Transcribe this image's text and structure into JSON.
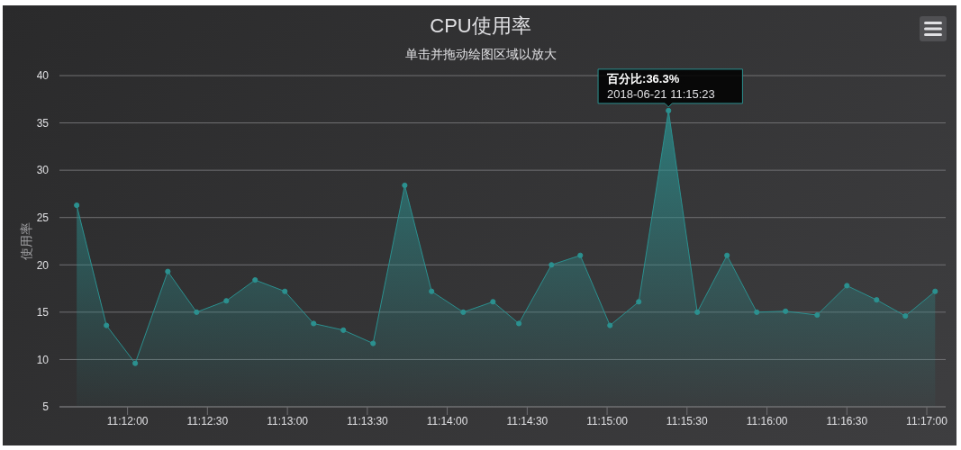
{
  "chart_data": {
    "type": "area",
    "title": "CPU使用率",
    "subtitle": "单击并拖动绘图区域以放大",
    "ylabel": "使用率",
    "x": [
      11.1947,
      11.1978,
      11.2008,
      11.2042,
      11.2072,
      11.2103,
      11.2133,
      11.2164,
      11.2194,
      11.2225,
      11.2256,
      11.2289,
      11.2317,
      11.235,
      11.2381,
      11.2408,
      11.2442,
      11.2472,
      11.2503,
      11.2533,
      11.2564,
      11.2594,
      11.2625,
      11.2656,
      11.2686,
      11.2719,
      11.275,
      11.2781,
      11.2811,
      11.2842
    ],
    "values": [
      26.3,
      13.6,
      9.6,
      19.3,
      15.0,
      16.2,
      18.4,
      17.2,
      13.8,
      13.1,
      11.7,
      28.4,
      17.2,
      15.0,
      16.1,
      13.8,
      20.0,
      21.0,
      13.6,
      16.1,
      36.3,
      15.0,
      21.0,
      15.0,
      15.1,
      14.7,
      17.8,
      16.3,
      14.6,
      17.2
    ],
    "color": "#2b908f",
    "xlim": [
      11.1929,
      11.2853
    ],
    "xticks": [
      {
        "value": 11.2,
        "label": "11:12:00"
      },
      {
        "value": 11.20833,
        "label": "11:12:30"
      },
      {
        "value": 11.21667,
        "label": "11:13:00"
      },
      {
        "value": 11.225,
        "label": "11:13:30"
      },
      {
        "value": 11.23333,
        "label": "11:14:00"
      },
      {
        "value": 11.24167,
        "label": "11:14:30"
      },
      {
        "value": 11.25,
        "label": "11:15:00"
      },
      {
        "value": 11.25833,
        "label": "11:15:30"
      },
      {
        "value": 11.26667,
        "label": "11:16:00"
      },
      {
        "value": 11.275,
        "label": "11:16:30"
      },
      {
        "value": 11.28333,
        "label": "11:17:00"
      }
    ],
    "ylim": [
      5,
      40
    ],
    "yticks": [
      5,
      10,
      15,
      20,
      25,
      30,
      35,
      40
    ],
    "grid": "y",
    "marker": "circle",
    "line_style": "solid",
    "annotations": [
      {
        "text": "百分比:36.3%",
        "x": 11.2564,
        "y": 36.3
      },
      {
        "text": "2018-06-21 11:15:23",
        "x": 11.2564,
        "y": 36.3
      }
    ]
  }
}
